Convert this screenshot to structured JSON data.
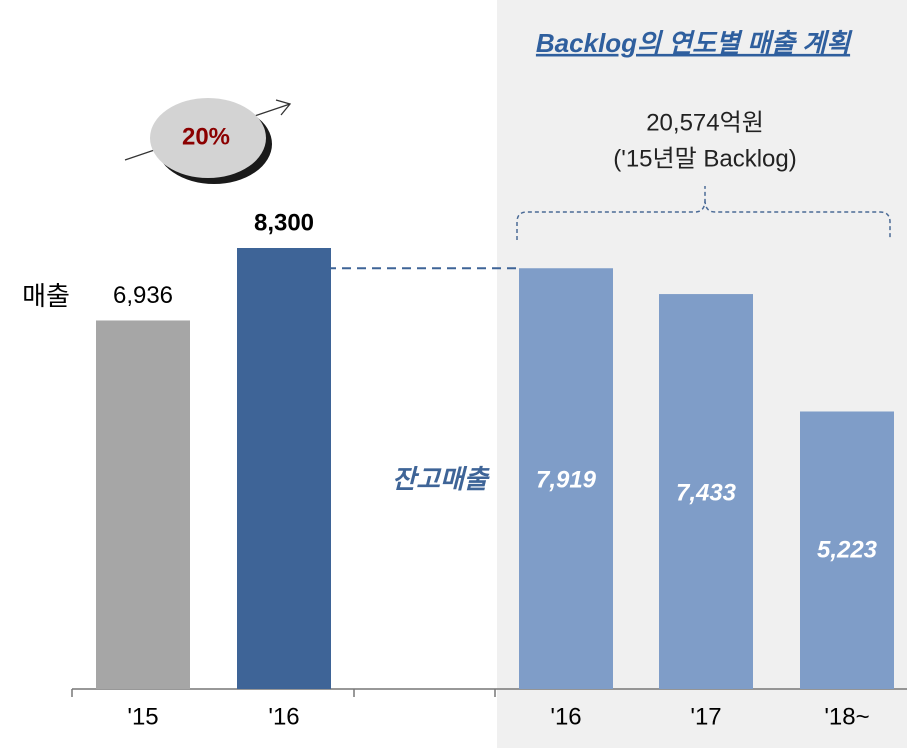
{
  "chart_data": {
    "type": "bar",
    "title": "Backlog의 연도별 매출 계획",
    "categories": [
      "'15",
      "'16",
      "'16",
      "'17",
      "'18~"
    ],
    "values": [
      6936,
      8300,
      7919,
      7433,
      5223
    ],
    "value_labels": [
      "6,936",
      "8,300",
      "7,919",
      "7,433",
      "5,223"
    ],
    "colors": [
      "#a6a6a6",
      "#3e6497",
      "#7f9dc8",
      "#7f9dc8",
      "#7f9dc8"
    ],
    "annotations": {
      "sales_label": "매출",
      "backlog_label": "잔고매출",
      "growth": "20%",
      "total": "20,574억원",
      "total_note": "('15년말 Backlog)"
    }
  }
}
